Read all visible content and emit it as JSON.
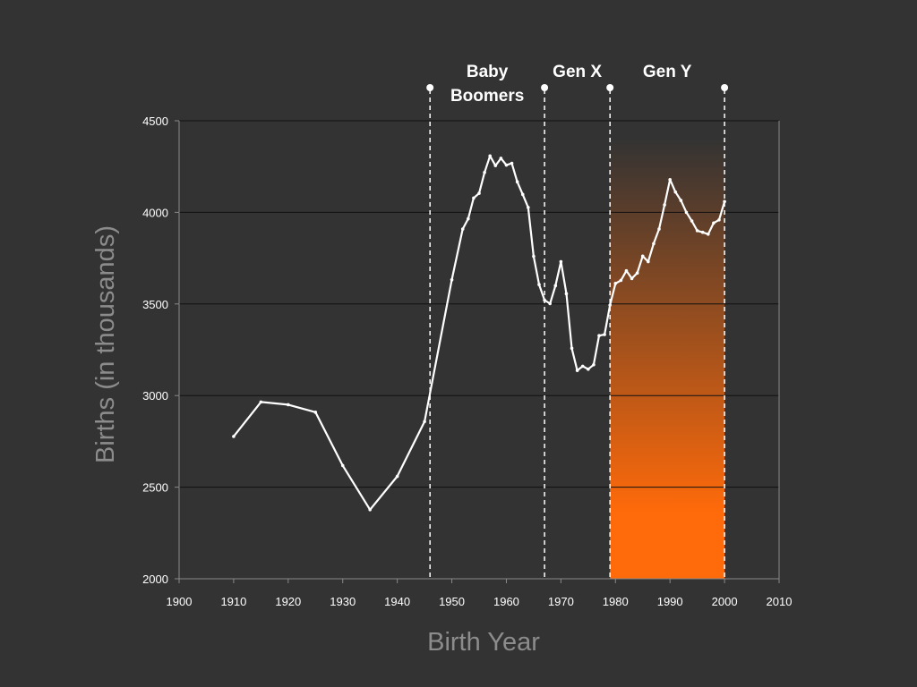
{
  "colors": {
    "background": "#333333",
    "line": "#ffffff",
    "gridline": "#111111",
    "axis": "#8a8a8a",
    "axis_title": "#8c8c8c",
    "band_top": "#333333",
    "band_bottom": "#ff6a0a"
  },
  "chart_data": {
    "type": "line",
    "title": "",
    "xlabel": "Birth Year",
    "ylabel": "Births (in thousands)",
    "xlim": [
      1900,
      2010
    ],
    "ylim": [
      2000,
      4500
    ],
    "x_ticks": [
      "1900",
      "1910",
      "1920",
      "1930",
      "1940",
      "1950",
      "1960",
      "1970",
      "1980",
      "1990",
      "2000",
      "2010"
    ],
    "y_ticks": [
      "2000",
      "2500",
      "3000",
      "3500",
      "4000",
      "4500"
    ],
    "grid": "horizontal",
    "series": [
      {
        "points": [
          [
            1910,
            2777
          ],
          [
            1915,
            2965
          ],
          [
            1920,
            2950
          ],
          [
            1925,
            2909
          ],
          [
            1930,
            2618
          ],
          [
            1935,
            2377
          ],
          [
            1940,
            2559
          ],
          [
            1945,
            2858
          ],
          [
            1950,
            3632
          ],
          [
            1952,
            3909
          ],
          [
            1953,
            3965
          ],
          [
            1954,
            4078
          ],
          [
            1955,
            4104
          ],
          [
            1956,
            4218
          ],
          [
            1957,
            4308
          ],
          [
            1958,
            4255
          ],
          [
            1959,
            4295
          ],
          [
            1960,
            4258
          ],
          [
            1961,
            4268
          ],
          [
            1962,
            4167
          ],
          [
            1963,
            4098
          ],
          [
            1964,
            4027
          ],
          [
            1965,
            3760
          ],
          [
            1966,
            3606
          ],
          [
            1967,
            3521
          ],
          [
            1968,
            3502
          ],
          [
            1969,
            3600
          ],
          [
            1970,
            3731
          ],
          [
            1971,
            3556
          ],
          [
            1972,
            3258
          ],
          [
            1973,
            3137
          ],
          [
            1974,
            3160
          ],
          [
            1975,
            3144
          ],
          [
            1976,
            3168
          ],
          [
            1977,
            3327
          ],
          [
            1978,
            3333
          ],
          [
            1979,
            3494
          ],
          [
            1980,
            3612
          ],
          [
            1981,
            3629
          ],
          [
            1982,
            3681
          ],
          [
            1983,
            3639
          ],
          [
            1984,
            3669
          ],
          [
            1985,
            3761
          ],
          [
            1986,
            3731
          ],
          [
            1987,
            3829
          ],
          [
            1988,
            3909
          ],
          [
            1989,
            4041
          ],
          [
            1990,
            4179
          ],
          [
            1991,
            4111
          ],
          [
            1992,
            4065
          ],
          [
            1993,
            4000
          ],
          [
            1994,
            3953
          ],
          [
            1995,
            3900
          ],
          [
            1996,
            3891
          ],
          [
            1997,
            3881
          ],
          [
            1998,
            3942
          ],
          [
            1999,
            3959
          ],
          [
            2000,
            4059
          ]
        ]
      }
    ],
    "annotations": {
      "generation_boundaries": [
        1946,
        1967,
        1979,
        2000
      ],
      "generations": [
        {
          "label_lines": [
            "Baby",
            "Boomers"
          ],
          "from": 1946,
          "to": 1967
        },
        {
          "label_lines": [
            "Gen X"
          ],
          "from": 1967,
          "to": 1979
        },
        {
          "label_lines": [
            "Gen Y"
          ],
          "from": 1979,
          "to": 2000
        }
      ],
      "highlight": {
        "from": 1979,
        "to": 2000
      }
    }
  }
}
